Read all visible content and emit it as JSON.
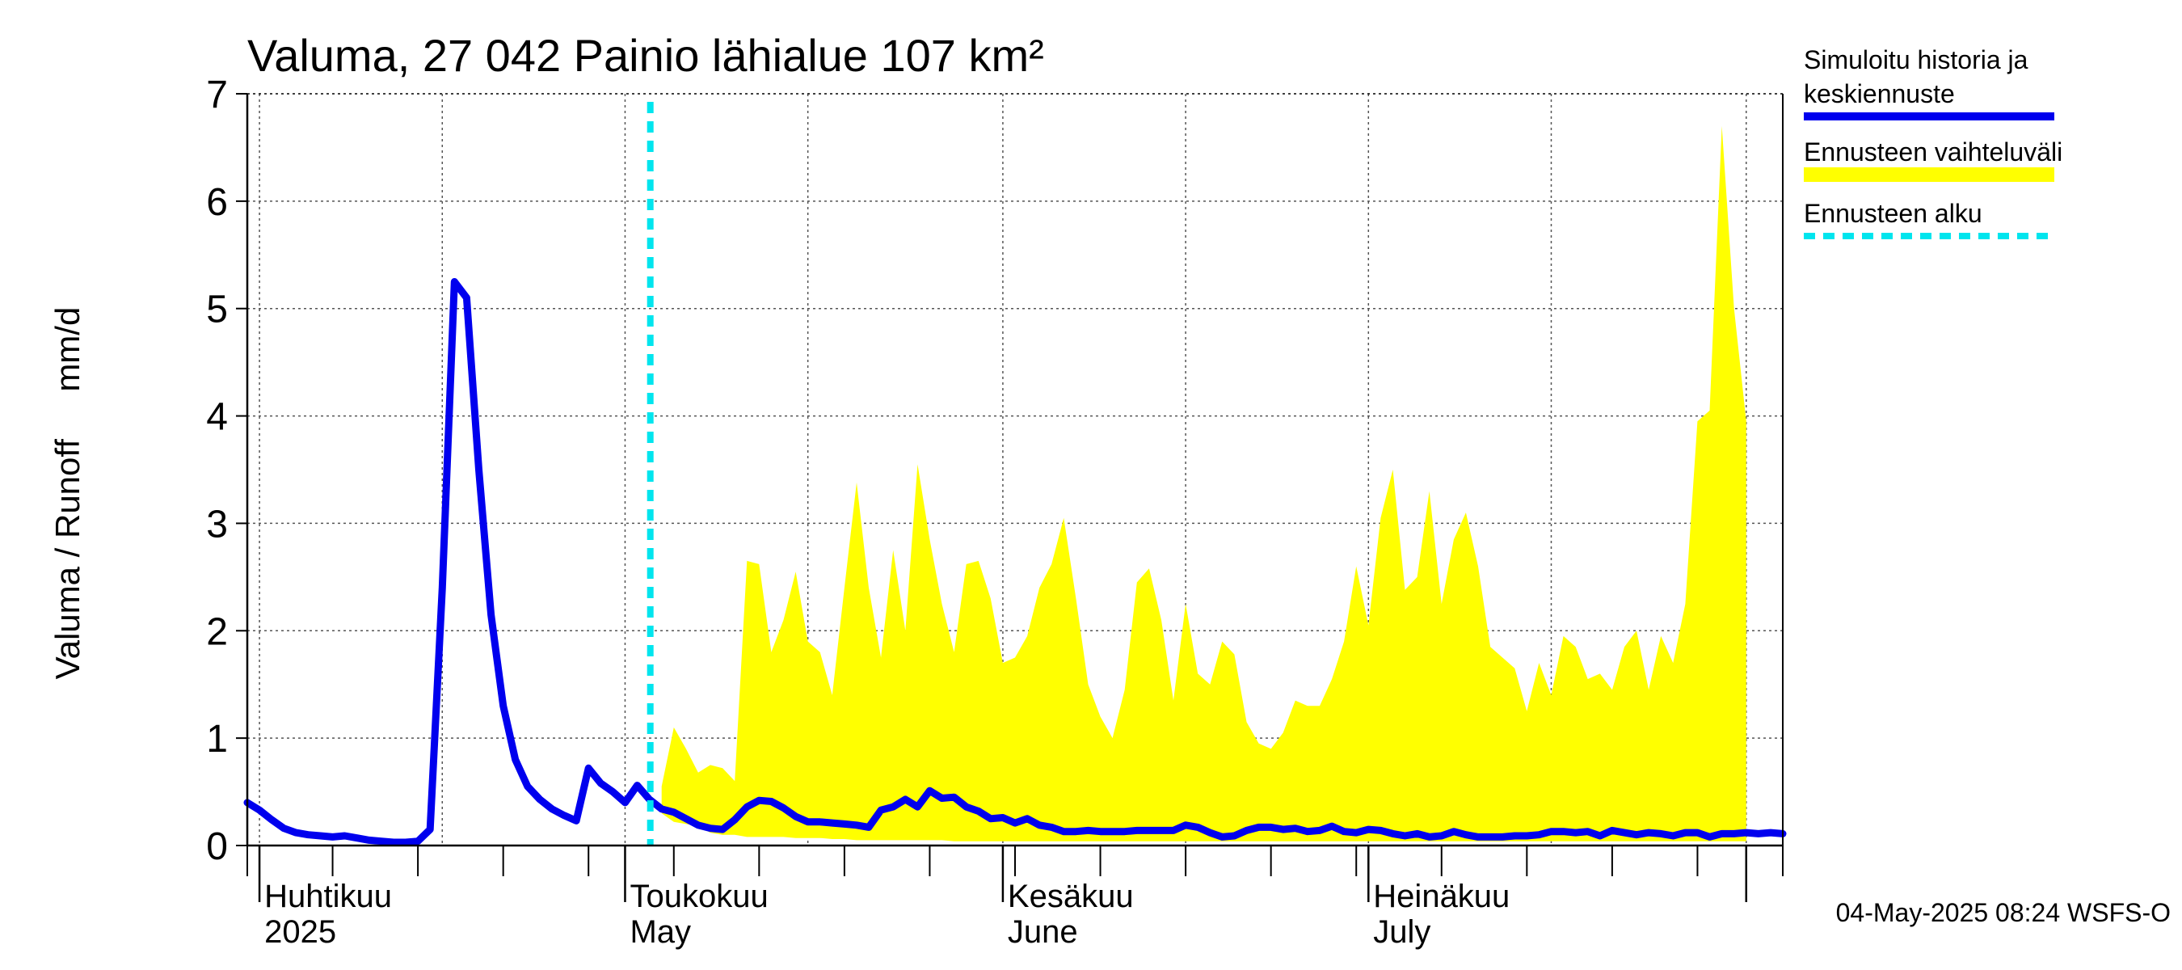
{
  "chart_data": {
    "type": "area",
    "title": "Valuma, 27 042 Painio lähialue 107 km²",
    "ylabel": "Valuma / Runoff     mm/d",
    "xlabel": "",
    "ylim": [
      0,
      7
    ],
    "yticks": [
      0,
      1,
      2,
      3,
      4,
      5,
      6,
      7
    ],
    "xlim": [
      "2025-03-31",
      "2025-08-04"
    ],
    "grid": true,
    "legend_position": "right",
    "month_labels": [
      {
        "date": "2025-04-01",
        "line1": "Huhtikuu",
        "line2": "2025"
      },
      {
        "date": "2025-05-01",
        "line1": "Toukokuu",
        "line2": "May"
      },
      {
        "date": "2025-06-01",
        "line1": "Kesäkuu",
        "line2": "June"
      },
      {
        "date": "2025-07-01",
        "line1": "Heinäkuu",
        "line2": "July"
      }
    ],
    "forecast_start": "2025-05-04",
    "series": [
      {
        "name": "Simuloitu historia ja keskiennuste",
        "color": "#0000ee",
        "points": [
          [
            "2025-03-31",
            0.4
          ],
          [
            "2025-04-01",
            0.33
          ],
          [
            "2025-04-02",
            0.24
          ],
          [
            "2025-04-03",
            0.16
          ],
          [
            "2025-04-04",
            0.12
          ],
          [
            "2025-04-05",
            0.1
          ],
          [
            "2025-04-06",
            0.09
          ],
          [
            "2025-04-07",
            0.08
          ],
          [
            "2025-04-08",
            0.09
          ],
          [
            "2025-04-09",
            0.07
          ],
          [
            "2025-04-10",
            0.05
          ],
          [
            "2025-04-11",
            0.04
          ],
          [
            "2025-04-12",
            0.03
          ],
          [
            "2025-04-13",
            0.03
          ],
          [
            "2025-04-14",
            0.04
          ],
          [
            "2025-04-15",
            0.15
          ],
          [
            "2025-04-16",
            2.4
          ],
          [
            "2025-04-17",
            5.25
          ],
          [
            "2025-04-18",
            5.1
          ],
          [
            "2025-04-19",
            3.5
          ],
          [
            "2025-04-20",
            2.15
          ],
          [
            "2025-04-21",
            1.3
          ],
          [
            "2025-04-22",
            0.8
          ],
          [
            "2025-04-23",
            0.55
          ],
          [
            "2025-04-24",
            0.43
          ],
          [
            "2025-04-25",
            0.34
          ],
          [
            "2025-04-26",
            0.28
          ],
          [
            "2025-04-27",
            0.23
          ],
          [
            "2025-04-28",
            0.72
          ],
          [
            "2025-04-29",
            0.58
          ],
          [
            "2025-04-30",
            0.5
          ],
          [
            "2025-05-01",
            0.4
          ],
          [
            "2025-05-02",
            0.56
          ],
          [
            "2025-05-03",
            0.43
          ],
          [
            "2025-05-04",
            0.34
          ],
          [
            "2025-05-05",
            0.31
          ],
          [
            "2025-05-06",
            0.25
          ],
          [
            "2025-05-07",
            0.19
          ],
          [
            "2025-05-08",
            0.16
          ],
          [
            "2025-05-09",
            0.15
          ],
          [
            "2025-05-10",
            0.24
          ],
          [
            "2025-05-11",
            0.36
          ],
          [
            "2025-05-12",
            0.42
          ],
          [
            "2025-05-13",
            0.41
          ],
          [
            "2025-05-14",
            0.35
          ],
          [
            "2025-05-15",
            0.27
          ],
          [
            "2025-05-16",
            0.22
          ],
          [
            "2025-05-17",
            0.22
          ],
          [
            "2025-05-18",
            0.21
          ],
          [
            "2025-05-19",
            0.2
          ],
          [
            "2025-05-20",
            0.19
          ],
          [
            "2025-05-21",
            0.17
          ],
          [
            "2025-05-22",
            0.33
          ],
          [
            "2025-05-23",
            0.36
          ],
          [
            "2025-05-24",
            0.43
          ],
          [
            "2025-05-25",
            0.36
          ],
          [
            "2025-05-26",
            0.51
          ],
          [
            "2025-05-27",
            0.44
          ],
          [
            "2025-05-28",
            0.45
          ],
          [
            "2025-05-29",
            0.36
          ],
          [
            "2025-05-30",
            0.32
          ],
          [
            "2025-05-31",
            0.25
          ],
          [
            "2025-06-01",
            0.26
          ],
          [
            "2025-06-02",
            0.21
          ],
          [
            "2025-06-03",
            0.25
          ],
          [
            "2025-06-04",
            0.19
          ],
          [
            "2025-06-05",
            0.17
          ],
          [
            "2025-06-06",
            0.13
          ],
          [
            "2025-06-07",
            0.13
          ],
          [
            "2025-06-08",
            0.14
          ],
          [
            "2025-06-09",
            0.13
          ],
          [
            "2025-06-10",
            0.13
          ],
          [
            "2025-06-11",
            0.13
          ],
          [
            "2025-06-12",
            0.14
          ],
          [
            "2025-06-13",
            0.14
          ],
          [
            "2025-06-14",
            0.14
          ],
          [
            "2025-06-15",
            0.14
          ],
          [
            "2025-06-16",
            0.19
          ],
          [
            "2025-06-17",
            0.17
          ],
          [
            "2025-06-18",
            0.12
          ],
          [
            "2025-06-19",
            0.08
          ],
          [
            "2025-06-20",
            0.09
          ],
          [
            "2025-06-21",
            0.14
          ],
          [
            "2025-06-22",
            0.17
          ],
          [
            "2025-06-23",
            0.17
          ],
          [
            "2025-06-24",
            0.15
          ],
          [
            "2025-06-25",
            0.16
          ],
          [
            "2025-06-26",
            0.13
          ],
          [
            "2025-06-27",
            0.14
          ],
          [
            "2025-06-28",
            0.18
          ],
          [
            "2025-06-29",
            0.13
          ],
          [
            "2025-06-30",
            0.12
          ],
          [
            "2025-07-01",
            0.15
          ],
          [
            "2025-07-02",
            0.14
          ],
          [
            "2025-07-03",
            0.11
          ],
          [
            "2025-07-04",
            0.09
          ],
          [
            "2025-07-05",
            0.11
          ],
          [
            "2025-07-06",
            0.08
          ],
          [
            "2025-07-07",
            0.09
          ],
          [
            "2025-07-08",
            0.13
          ],
          [
            "2025-07-09",
            0.1
          ],
          [
            "2025-07-10",
            0.08
          ],
          [
            "2025-07-11",
            0.08
          ],
          [
            "2025-07-12",
            0.08
          ],
          [
            "2025-07-13",
            0.09
          ],
          [
            "2025-07-14",
            0.09
          ],
          [
            "2025-07-15",
            0.1
          ],
          [
            "2025-07-16",
            0.13
          ],
          [
            "2025-07-17",
            0.13
          ],
          [
            "2025-07-18",
            0.12
          ],
          [
            "2025-07-19",
            0.13
          ],
          [
            "2025-07-20",
            0.09
          ],
          [
            "2025-07-21",
            0.14
          ],
          [
            "2025-07-22",
            0.12
          ],
          [
            "2025-07-23",
            0.1
          ],
          [
            "2025-07-24",
            0.12
          ],
          [
            "2025-07-25",
            0.11
          ],
          [
            "2025-07-26",
            0.09
          ],
          [
            "2025-07-27",
            0.12
          ],
          [
            "2025-07-28",
            0.12
          ],
          [
            "2025-07-29",
            0.08
          ],
          [
            "2025-07-30",
            0.11
          ],
          [
            "2025-07-31",
            0.11
          ],
          [
            "2025-08-01",
            0.12
          ],
          [
            "2025-08-02",
            0.11
          ],
          [
            "2025-08-03",
            0.12
          ],
          [
            "2025-08-04",
            0.11
          ]
        ]
      },
      {
        "name": "Ennusteen vaihteluväli",
        "color": "#ffff00",
        "type": "range",
        "points": [
          [
            "2025-05-04",
            0.3,
            0.55
          ],
          [
            "2025-05-05",
            0.22,
            1.1
          ],
          [
            "2025-05-06",
            0.2,
            0.9
          ],
          [
            "2025-05-07",
            0.18,
            0.68
          ],
          [
            "2025-05-08",
            0.12,
            0.75
          ],
          [
            "2025-05-09",
            0.1,
            0.72
          ],
          [
            "2025-05-10",
            0.1,
            0.6
          ],
          [
            "2025-05-11",
            0.08,
            2.65
          ],
          [
            "2025-05-12",
            0.08,
            2.62
          ],
          [
            "2025-05-13",
            0.08,
            1.8
          ],
          [
            "2025-05-14",
            0.08,
            2.1
          ],
          [
            "2025-05-15",
            0.07,
            2.55
          ],
          [
            "2025-05-16",
            0.07,
            1.9
          ],
          [
            "2025-05-17",
            0.07,
            1.8
          ],
          [
            "2025-05-18",
            0.06,
            1.4
          ],
          [
            "2025-05-19",
            0.06,
            2.4
          ],
          [
            "2025-05-20",
            0.05,
            3.38
          ],
          [
            "2025-05-21",
            0.05,
            2.4
          ],
          [
            "2025-05-22",
            0.05,
            1.75
          ],
          [
            "2025-05-23",
            0.05,
            2.75
          ],
          [
            "2025-05-24",
            0.05,
            2.0
          ],
          [
            "2025-05-25",
            0.05,
            3.55
          ],
          [
            "2025-05-26",
            0.05,
            2.85
          ],
          [
            "2025-05-27",
            0.05,
            2.25
          ],
          [
            "2025-05-28",
            0.04,
            1.8
          ],
          [
            "2025-05-29",
            0.04,
            2.62
          ],
          [
            "2025-05-30",
            0.04,
            2.65
          ],
          [
            "2025-05-31",
            0.04,
            2.3
          ],
          [
            "2025-06-01",
            0.04,
            1.7
          ],
          [
            "2025-06-02",
            0.04,
            1.75
          ],
          [
            "2025-06-03",
            0.04,
            1.95
          ],
          [
            "2025-06-04",
            0.04,
            2.4
          ],
          [
            "2025-06-05",
            0.04,
            2.62
          ],
          [
            "2025-06-06",
            0.04,
            3.05
          ],
          [
            "2025-06-07",
            0.04,
            2.3
          ],
          [
            "2025-06-08",
            0.04,
            1.5
          ],
          [
            "2025-06-09",
            0.04,
            1.2
          ],
          [
            "2025-06-10",
            0.04,
            1.0
          ],
          [
            "2025-06-11",
            0.04,
            1.45
          ],
          [
            "2025-06-12",
            0.04,
            2.45
          ],
          [
            "2025-06-13",
            0.04,
            2.58
          ],
          [
            "2025-06-14",
            0.04,
            2.1
          ],
          [
            "2025-06-15",
            0.04,
            1.35
          ],
          [
            "2025-06-16",
            0.04,
            2.25
          ],
          [
            "2025-06-17",
            0.04,
            1.6
          ],
          [
            "2025-06-18",
            0.04,
            1.5
          ],
          [
            "2025-06-19",
            0.04,
            1.9
          ],
          [
            "2025-06-20",
            0.04,
            1.78
          ],
          [
            "2025-06-21",
            0.04,
            1.15
          ],
          [
            "2025-06-22",
            0.04,
            0.95
          ],
          [
            "2025-06-23",
            0.04,
            0.9
          ],
          [
            "2025-06-24",
            0.04,
            1.05
          ],
          [
            "2025-06-25",
            0.04,
            1.35
          ],
          [
            "2025-06-26",
            0.04,
            1.3
          ],
          [
            "2025-06-27",
            0.04,
            1.3
          ],
          [
            "2025-06-28",
            0.04,
            1.55
          ],
          [
            "2025-06-29",
            0.04,
            1.9
          ],
          [
            "2025-06-30",
            0.04,
            2.6
          ],
          [
            "2025-07-01",
            0.04,
            2.05
          ],
          [
            "2025-07-02",
            0.04,
            3.05
          ],
          [
            "2025-07-03",
            0.04,
            3.5
          ],
          [
            "2025-07-04",
            0.04,
            2.38
          ],
          [
            "2025-07-05",
            0.04,
            2.5
          ],
          [
            "2025-07-06",
            0.04,
            3.3
          ],
          [
            "2025-07-07",
            0.04,
            2.25
          ],
          [
            "2025-07-08",
            0.04,
            2.85
          ],
          [
            "2025-07-09",
            0.04,
            3.1
          ],
          [
            "2025-07-10",
            0.04,
            2.6
          ],
          [
            "2025-07-11",
            0.04,
            1.85
          ],
          [
            "2025-07-12",
            0.04,
            1.75
          ],
          [
            "2025-07-13",
            0.04,
            1.65
          ],
          [
            "2025-07-14",
            0.04,
            1.25
          ],
          [
            "2025-07-15",
            0.04,
            1.7
          ],
          [
            "2025-07-16",
            0.04,
            1.4
          ],
          [
            "2025-07-17",
            0.04,
            1.95
          ],
          [
            "2025-07-18",
            0.04,
            1.85
          ],
          [
            "2025-07-19",
            0.04,
            1.55
          ],
          [
            "2025-07-20",
            0.04,
            1.6
          ],
          [
            "2025-07-21",
            0.04,
            1.45
          ],
          [
            "2025-07-22",
            0.04,
            1.85
          ],
          [
            "2025-07-23",
            0.04,
            2.0
          ],
          [
            "2025-07-24",
            0.04,
            1.45
          ],
          [
            "2025-07-25",
            0.04,
            1.95
          ],
          [
            "2025-07-26",
            0.04,
            1.7
          ],
          [
            "2025-07-27",
            0.04,
            2.25
          ],
          [
            "2025-07-28",
            0.04,
            3.95
          ],
          [
            "2025-07-29",
            0.04,
            4.05
          ],
          [
            "2025-07-30",
            0.04,
            6.7
          ],
          [
            "2025-07-31",
            0.04,
            5.0
          ],
          [
            "2025-08-01",
            0.04,
            3.95
          ]
        ]
      },
      {
        "name": "Ennusteen alku",
        "color": "#00e5ee",
        "type": "vline"
      }
    ]
  },
  "legend": {
    "items": [
      {
        "line1": "Simuloitu historia ja",
        "line2": "keskiennuste",
        "color": "#0000ee",
        "style": "solid"
      },
      {
        "line1": "Ennusteen vaihteluväli",
        "line2": "",
        "color": "#ffff00",
        "style": "solid"
      },
      {
        "line1": "Ennusteen alku",
        "line2": "",
        "color": "#00e5ee",
        "style": "dashed"
      }
    ]
  },
  "footer": {
    "timestamp": "04-May-2025 08:24 WSFS-O"
  }
}
